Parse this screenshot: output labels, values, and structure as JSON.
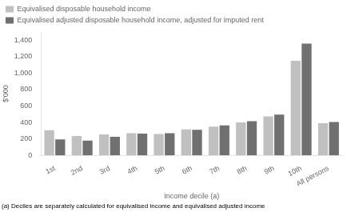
{
  "chart_data": {
    "type": "bar",
    "categories": [
      "1st",
      "2nd",
      "3rd",
      "4th",
      "5th",
      "6th",
      "7th",
      "8th",
      "9th",
      "10th",
      "All persons"
    ],
    "series": [
      {
        "name": "Equivalised disposable household income",
        "color": "#c0c0c0",
        "values": [
          305,
          235,
          255,
          270,
          260,
          315,
          350,
          400,
          475,
          1150,
          390
        ]
      },
      {
        "name": "Equivalised adjusted disposable household income, adjusted for imputed rent",
        "color": "#707070",
        "values": [
          195,
          180,
          225,
          265,
          270,
          310,
          365,
          415,
          495,
          1360,
          405
        ]
      }
    ],
    "xlabel": "Income decile (a)",
    "ylabel": "$'000",
    "ylim": [
      0,
      1500
    ],
    "yticks": [
      0,
      200,
      400,
      600,
      800,
      1000,
      1200,
      1400
    ],
    "grid": false,
    "legend": "upper left",
    "annotations": [
      "(a) Deciles are separately calculated for equivalised income and equivalised adjusted income"
    ]
  }
}
